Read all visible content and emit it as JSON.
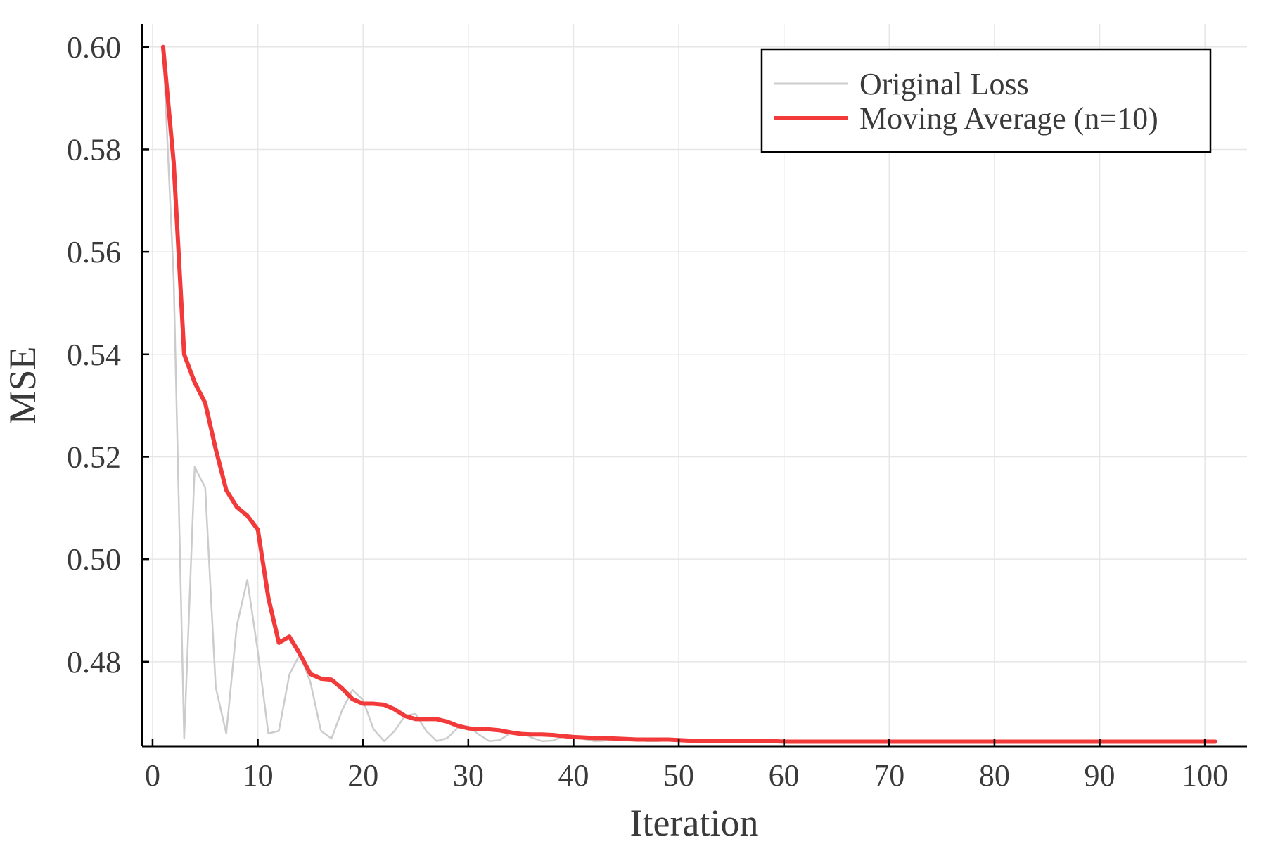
{
  "chart_data": {
    "type": "line",
    "title": "",
    "xlabel": "Iteration",
    "ylabel": "MSE",
    "xlim": [
      -1,
      104
    ],
    "ylim": [
      0.4635,
      0.6045
    ],
    "xticks": [
      0,
      10,
      20,
      30,
      40,
      50,
      60,
      70,
      80,
      90,
      100
    ],
    "yticks": [
      0.48,
      0.5,
      0.52,
      0.54,
      0.56,
      0.58,
      0.6
    ],
    "xtick_labels": [
      "0",
      "10",
      "20",
      "30",
      "40",
      "50",
      "60",
      "70",
      "80",
      "90",
      "100"
    ],
    "ytick_labels": [
      "0.48",
      "0.50",
      "0.52",
      "0.54",
      "0.56",
      "0.58",
      "0.60"
    ],
    "grid": true,
    "legend_position": "top-right",
    "series": [
      {
        "name": "Original Loss",
        "color": "#cccccc",
        "x": [
          1,
          2,
          3,
          4,
          5,
          6,
          7,
          8,
          9,
          10,
          11,
          12,
          13,
          14,
          15,
          16,
          17,
          18,
          19,
          20,
          21,
          22,
          23,
          24,
          25,
          26,
          27,
          28,
          29,
          30,
          31,
          32,
          33,
          34,
          35,
          36,
          37,
          38,
          39,
          40,
          41,
          42,
          43,
          44,
          45,
          46,
          47,
          48,
          49,
          50,
          51,
          52,
          53,
          54,
          55,
          56,
          57,
          58,
          59,
          60,
          61,
          62,
          63,
          64,
          65,
          66,
          67,
          68,
          69,
          70,
          71,
          72,
          73,
          74,
          75,
          76,
          77,
          78,
          79,
          80,
          81,
          82,
          83,
          84,
          85,
          86,
          87,
          88,
          89,
          90,
          91,
          92,
          93,
          94,
          95,
          96,
          97,
          98,
          99,
          100,
          101
        ],
        "values": [
          0.6,
          0.555,
          0.465,
          0.518,
          0.514,
          0.475,
          0.466,
          0.487,
          0.496,
          0.482,
          0.466,
          0.4665,
          0.4775,
          0.4815,
          0.476,
          0.4665,
          0.465,
          0.4705,
          0.4745,
          0.4725,
          0.4668,
          0.4645,
          0.4665,
          0.4695,
          0.4698,
          0.4665,
          0.4645,
          0.4651,
          0.4671,
          0.4674,
          0.4658,
          0.4645,
          0.4647,
          0.4661,
          0.4662,
          0.4652,
          0.4645,
          0.4646,
          0.4654,
          0.4655,
          0.4649,
          0.4645,
          0.4646,
          0.465,
          0.465,
          0.4647,
          0.4645,
          0.4645,
          0.4647,
          0.4647,
          0.4645,
          0.4644,
          0.4645,
          0.4646,
          0.4646,
          0.4645,
          0.4644,
          0.4644,
          0.4645,
          0.4645,
          0.4644,
          0.4644,
          0.4644,
          0.4644,
          0.4644,
          0.4644,
          0.4644,
          0.4644,
          0.4644,
          0.4644,
          0.4644,
          0.4644,
          0.4644,
          0.4644,
          0.4644,
          0.4644,
          0.4644,
          0.4644,
          0.4644,
          0.4644,
          0.4644,
          0.4644,
          0.4644,
          0.4644,
          0.4644,
          0.4644,
          0.4644,
          0.4644,
          0.4644,
          0.4644,
          0.4644,
          0.4644,
          0.4644,
          0.4644,
          0.4644,
          0.4644,
          0.4644,
          0.4644,
          0.4644,
          0.4644,
          0.4644
        ]
      },
      {
        "name": "Moving Average (n=10)",
        "color": "#f23a3a",
        "x": [
          1,
          2,
          3,
          4,
          5,
          6,
          7,
          8,
          9,
          10,
          11,
          12,
          13,
          14,
          15,
          16,
          17,
          18,
          19,
          20,
          21,
          22,
          23,
          24,
          25,
          26,
          27,
          28,
          29,
          30,
          31,
          32,
          33,
          34,
          35,
          36,
          37,
          38,
          39,
          40,
          41,
          42,
          43,
          44,
          45,
          46,
          47,
          48,
          49,
          50,
          51,
          52,
          53,
          54,
          55,
          56,
          57,
          58,
          59,
          60,
          61,
          62,
          63,
          64,
          65,
          66,
          67,
          68,
          69,
          70,
          71,
          72,
          73,
          74,
          75,
          76,
          77,
          78,
          79,
          80,
          81,
          82,
          83,
          84,
          85,
          86,
          87,
          88,
          89,
          90,
          91,
          92,
          93,
          94,
          95,
          96,
          97,
          98,
          99,
          100,
          101
        ],
        "values": [
          0.6,
          0.5775,
          0.54,
          0.5345,
          0.5305,
          0.5215,
          0.5135,
          0.5102,
          0.5085,
          0.5058,
          0.4925,
          0.4837,
          0.4849,
          0.4815,
          0.4776,
          0.4767,
          0.4765,
          0.4748,
          0.4727,
          0.4718,
          0.4718,
          0.4716,
          0.4707,
          0.4694,
          0.4688,
          0.4688,
          0.4688,
          0.4683,
          0.4675,
          0.467,
          0.4668,
          0.4668,
          0.4666,
          0.4662,
          0.4659,
          0.4658,
          0.4658,
          0.4657,
          0.4655,
          0.4653,
          0.4652,
          0.4651,
          0.4651,
          0.465,
          0.4649,
          0.4648,
          0.4648,
          0.4648,
          0.4648,
          0.4647,
          0.4646,
          0.4646,
          0.4646,
          0.4646,
          0.4645,
          0.4645,
          0.4645,
          0.4645,
          0.4645,
          0.4644,
          0.4644,
          0.4644,
          0.4644,
          0.4644,
          0.4644,
          0.4644,
          0.4644,
          0.4644,
          0.4644,
          0.4644,
          0.4644,
          0.4644,
          0.4644,
          0.4644,
          0.4644,
          0.4644,
          0.4644,
          0.4644,
          0.4644,
          0.4644,
          0.4644,
          0.4644,
          0.4644,
          0.4644,
          0.4644,
          0.4644,
          0.4644,
          0.4644,
          0.4644,
          0.4644,
          0.4644,
          0.4644,
          0.4644,
          0.4644,
          0.4644,
          0.4644,
          0.4644,
          0.4644,
          0.4644,
          0.4644,
          0.4644
        ]
      }
    ]
  }
}
